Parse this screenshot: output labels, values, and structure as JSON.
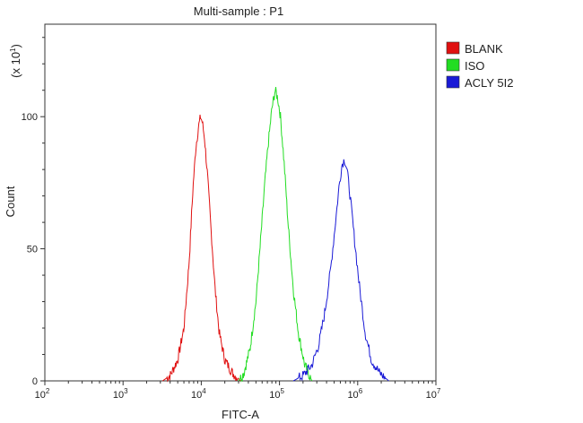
{
  "chart_data": {
    "type": "line",
    "title": "Multi-sample : P1",
    "xlabel": "FITC-A",
    "ylabel": "Count",
    "y_multiplier": "(x 10",
    "y_multiplier_exp": "1",
    "x_scale": "log",
    "xlim": [
      100,
      10000000
    ],
    "ylim": [
      0,
      135
    ],
    "x_ticks": [
      {
        "base": "10",
        "exp": "2"
      },
      {
        "base": "10",
        "exp": "3"
      },
      {
        "base": "10",
        "exp": "4"
      },
      {
        "base": "10",
        "exp": "5"
      },
      {
        "base": "10",
        "exp": "6"
      },
      {
        "base": "10",
        "exp": "7"
      }
    ],
    "y_ticks": [
      "0",
      "50",
      "100"
    ],
    "legend_position": "top-right",
    "series": [
      {
        "name": "BLANK",
        "color": "#e01010",
        "points": [
          [
            3200,
            0
          ],
          [
            4000,
            2
          ],
          [
            5000,
            8
          ],
          [
            6000,
            20
          ],
          [
            7000,
            45
          ],
          [
            7800,
            72
          ],
          [
            8500,
            88
          ],
          [
            9200,
            96
          ],
          [
            9800,
            100
          ],
          [
            10300,
            98
          ],
          [
            11000,
            92
          ],
          [
            12000,
            78
          ],
          [
            13500,
            55
          ],
          [
            15000,
            35
          ],
          [
            17000,
            18
          ],
          [
            20000,
            8
          ],
          [
            25000,
            3
          ],
          [
            32000,
            0
          ]
        ]
      },
      {
        "name": "ISO",
        "color": "#22dd22",
        "points": [
          [
            30000,
            0
          ],
          [
            35000,
            3
          ],
          [
            42000,
            12
          ],
          [
            50000,
            30
          ],
          [
            58000,
            55
          ],
          [
            65000,
            75
          ],
          [
            72000,
            90
          ],
          [
            80000,
            103
          ],
          [
            88000,
            110
          ],
          [
            95000,
            107
          ],
          [
            103000,
            100
          ],
          [
            115000,
            82
          ],
          [
            130000,
            58
          ],
          [
            150000,
            35
          ],
          [
            175000,
            18
          ],
          [
            210000,
            6
          ],
          [
            260000,
            0
          ]
        ]
      },
      {
        "name": "ACLY 5I2",
        "color": "#1a1ad6",
        "points": [
          [
            150000,
            0
          ],
          [
            200000,
            2
          ],
          [
            260000,
            6
          ],
          [
            320000,
            14
          ],
          [
            380000,
            26
          ],
          [
            450000,
            42
          ],
          [
            520000,
            60
          ],
          [
            580000,
            74
          ],
          [
            630000,
            82
          ],
          [
            680000,
            84
          ],
          [
            730000,
            80
          ],
          [
            800000,
            70
          ],
          [
            900000,
            55
          ],
          [
            1050000,
            36
          ],
          [
            1250000,
            18
          ],
          [
            1500000,
            8
          ],
          [
            1900000,
            3
          ],
          [
            2500000,
            0
          ]
        ]
      }
    ]
  }
}
